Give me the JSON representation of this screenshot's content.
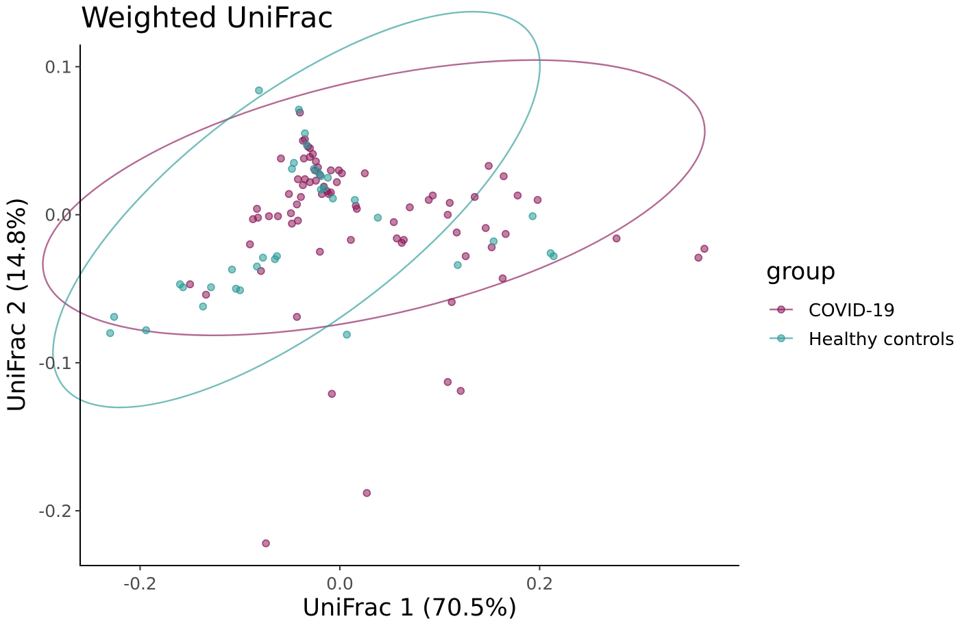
{
  "chart_data": {
    "type": "scatter",
    "title": "Weighted UniFrac",
    "xlabel": "UniFrac 1 (70.5%)",
    "ylabel": "UniFrac 2 (14.8%)",
    "xlim": [
      -0.26,
      0.4
    ],
    "ylim": [
      -0.237,
      0.115
    ],
    "xticks": [
      -0.2,
      0.0,
      0.2
    ],
    "xtick_labels": [
      "-0.2",
      "0.0",
      "0.2"
    ],
    "yticks": [
      0.1,
      0.0,
      -0.1,
      -0.2
    ],
    "ytick_labels": [
      "0.1",
      "0.0",
      "-0.1",
      "-0.2"
    ],
    "grid": false,
    "legend": {
      "title": "group",
      "position": "right",
      "entries": [
        "COVID-19",
        "Healthy controls"
      ]
    },
    "colors": {
      "COVID-19": "#8b1a5a",
      "Healthy controls": "#2a9a98"
    },
    "series": [
      {
        "name": "COVID-19",
        "ellipse": {
          "cx": 0.034,
          "cy": 0.0115,
          "rx": 0.339,
          "ry": 0.0795,
          "angle_deg": -13
        },
        "points": [
          [
            -0.04,
            0.069
          ],
          [
            -0.037,
            0.05
          ],
          [
            -0.035,
            0.051
          ],
          [
            -0.032,
            0.046
          ],
          [
            -0.03,
            0.045
          ],
          [
            -0.03,
            0.039
          ],
          [
            -0.027,
            0.041
          ],
          [
            -0.024,
            0.036
          ],
          [
            -0.036,
            0.038
          ],
          [
            -0.025,
            0.03
          ],
          [
            -0.022,
            0.032
          ],
          [
            -0.02,
            0.027
          ],
          [
            -0.024,
            0.023
          ],
          [
            -0.03,
            0.022
          ],
          [
            -0.037,
            0.02
          ],
          [
            -0.035,
            0.024
          ],
          [
            -0.016,
            0.019
          ],
          [
            -0.013,
            0.016
          ],
          [
            -0.011,
            0.014
          ],
          [
            -0.009,
            0.015
          ],
          [
            -0.018,
            0.014
          ],
          [
            -0.009,
            0.03
          ],
          [
            -0.001,
            0.03
          ],
          [
            0.002,
            0.028
          ],
          [
            -0.003,
            0.022
          ],
          [
            0.025,
            0.028
          ],
          [
            -0.059,
            0.038
          ],
          [
            -0.042,
            0.024
          ],
          [
            -0.051,
            0.014
          ],
          [
            -0.039,
            0.012
          ],
          [
            -0.043,
            0.007
          ],
          [
            -0.049,
            0.001
          ],
          [
            -0.083,
            0.004
          ],
          [
            -0.087,
            -0.003
          ],
          [
            -0.082,
            -0.002
          ],
          [
            -0.071,
            -0.001
          ],
          [
            -0.062,
            -0.001
          ],
          [
            -0.042,
            -0.004
          ],
          [
            -0.048,
            -0.006
          ],
          [
            -0.09,
            -0.02
          ],
          [
            -0.079,
            -0.038
          ],
          [
            -0.02,
            -0.025
          ],
          [
            0.011,
            -0.017
          ],
          [
            0.016,
            0.006
          ],
          [
            0.017,
            0.004
          ],
          [
            0.054,
            -0.005
          ],
          [
            0.057,
            -0.016
          ],
          [
            0.062,
            -0.019
          ],
          [
            0.064,
            -0.017
          ],
          [
            0.07,
            0.005
          ],
          [
            0.089,
            0.01
          ],
          [
            0.093,
            0.013
          ],
          [
            0.108,
            0.0
          ],
          [
            0.11,
            0.008
          ],
          [
            0.117,
            -0.012
          ],
          [
            0.126,
            -0.028
          ],
          [
            0.135,
            0.012
          ],
          [
            0.146,
            -0.009
          ],
          [
            0.149,
            0.033
          ],
          [
            0.152,
            -0.022
          ],
          [
            0.164,
            0.026
          ],
          [
            0.166,
            -0.013
          ],
          [
            0.163,
            -0.043
          ],
          [
            0.178,
            0.013
          ],
          [
            0.198,
            0.01
          ],
          [
            0.112,
            -0.059
          ],
          [
            0.108,
            -0.113
          ],
          [
            0.121,
            -0.119
          ],
          [
            -0.008,
            -0.121
          ],
          [
            0.027,
            -0.188
          ],
          [
            -0.074,
            -0.222
          ],
          [
            -0.043,
            -0.069
          ],
          [
            -0.134,
            -0.054
          ],
          [
            -0.15,
            -0.047
          ],
          [
            0.277,
            -0.016
          ],
          [
            0.365,
            -0.023
          ],
          [
            0.359,
            -0.029
          ]
        ]
      },
      {
        "name": "Healthy controls",
        "ellipse": {
          "cx": -0.0435,
          "cy": 0.0035,
          "rx": 0.293,
          "ry": 0.0765,
          "angle_deg": -37
        },
        "points": [
          [
            -0.081,
            0.084
          ],
          [
            -0.041,
            0.071
          ],
          [
            -0.035,
            0.055
          ],
          [
            -0.033,
            0.047
          ],
          [
            -0.046,
            0.035
          ],
          [
            -0.048,
            0.031
          ],
          [
            -0.026,
            0.031
          ],
          [
            -0.022,
            0.029
          ],
          [
            -0.019,
            0.026
          ],
          [
            -0.012,
            0.025
          ],
          [
            -0.016,
            0.018
          ],
          [
            -0.019,
            0.017
          ],
          [
            -0.007,
            0.011
          ],
          [
            0.015,
            0.01
          ],
          [
            0.038,
            -0.002
          ],
          [
            0.154,
            -0.018
          ],
          [
            0.118,
            -0.034
          ],
          [
            0.193,
            -0.001
          ],
          [
            0.211,
            -0.026
          ],
          [
            0.214,
            -0.028
          ],
          [
            0.007,
            -0.081
          ],
          [
            -0.063,
            -0.028
          ],
          [
            -0.065,
            -0.03
          ],
          [
            -0.077,
            -0.029
          ],
          [
            -0.083,
            -0.035
          ],
          [
            -0.108,
            -0.037
          ],
          [
            -0.104,
            -0.05
          ],
          [
            -0.1,
            -0.051
          ],
          [
            -0.129,
            -0.049
          ],
          [
            -0.137,
            -0.062
          ],
          [
            -0.16,
            -0.047
          ],
          [
            -0.157,
            -0.049
          ],
          [
            -0.226,
            -0.069
          ],
          [
            -0.23,
            -0.08
          ],
          [
            -0.194,
            -0.078
          ]
        ]
      }
    ]
  }
}
